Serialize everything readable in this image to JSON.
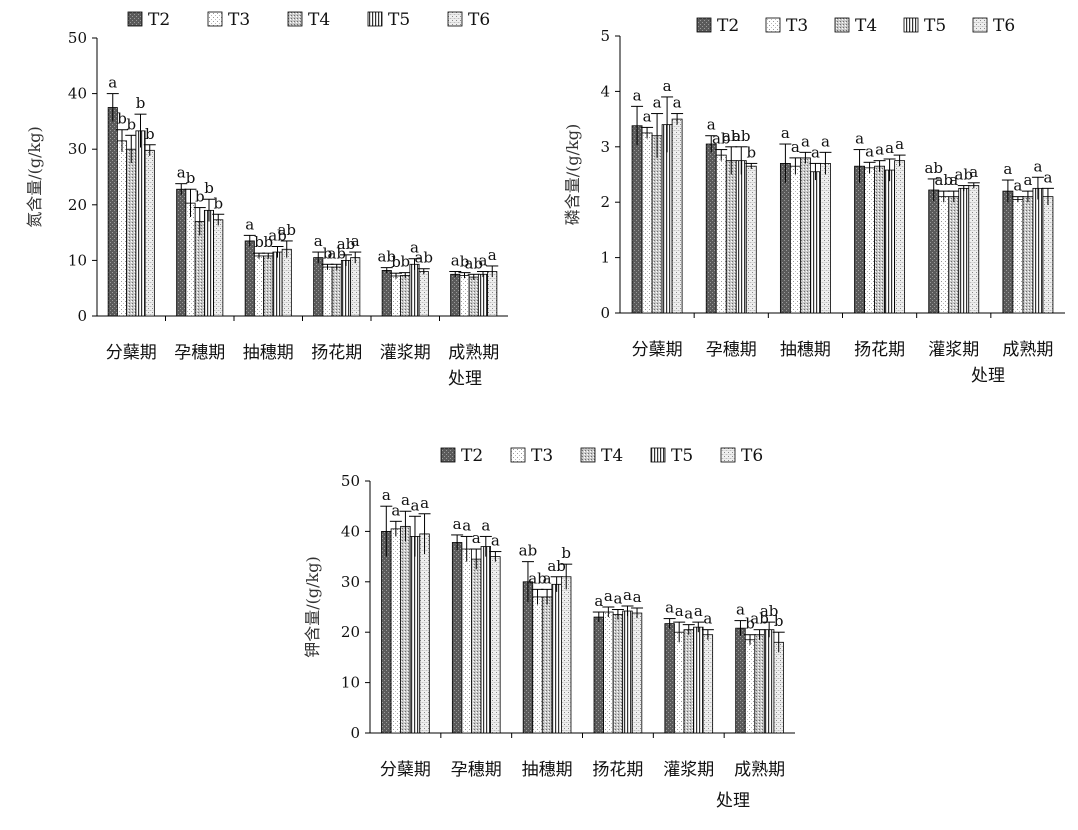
{
  "chart_data": [
    {
      "type": "bar",
      "ylabel": "氮含量/(g/kg)",
      "xlabel": "处理",
      "ylim": [
        0,
        50
      ],
      "yticks": [
        0,
        10,
        20,
        30,
        40,
        50
      ],
      "legend_position": "top",
      "categories": [
        "分蘖期",
        "孕穗期",
        "抽穗期",
        "扬花期",
        "灌浆期",
        "成熟期"
      ],
      "series": [
        {
          "name": "T2",
          "values": [
            37.5,
            22.8,
            13.5,
            10.5,
            8.2,
            7.5
          ],
          "errors": [
            2.5,
            1.0,
            1.0,
            1.0,
            0.5,
            0.5
          ],
          "labels": [
            "a",
            "a",
            "a",
            "a",
            "ab",
            "a"
          ]
        },
        {
          "name": "T3",
          "values": [
            31.5,
            20.3,
            10.8,
            8.8,
            7.2,
            7.3
          ],
          "errors": [
            2.0,
            2.5,
            0.5,
            0.5,
            0.5,
            0.5
          ],
          "labels": [
            "b",
            "b",
            "b",
            "b",
            "b",
            "b"
          ]
        },
        {
          "name": "T4",
          "values": [
            30.0,
            17.0,
            10.8,
            8.8,
            7.3,
            7.0
          ],
          "errors": [
            2.5,
            2.5,
            0.5,
            0.5,
            0.5,
            0.5
          ],
          "labels": [
            "b",
            "b",
            "b",
            "ab",
            "b",
            "ab"
          ]
        },
        {
          "name": "T5",
          "values": [
            33.3,
            19.0,
            11.5,
            10.0,
            9.3,
            7.5
          ],
          "errors": [
            3.0,
            2.0,
            1.0,
            1.0,
            1.0,
            0.5
          ],
          "labels": [
            "b",
            "b",
            "ab",
            "ab",
            "a",
            "a"
          ]
        },
        {
          "name": "T6",
          "values": [
            29.8,
            17.3,
            12.0,
            10.5,
            8.0,
            8.0
          ],
          "errors": [
            1.0,
            1.0,
            1.5,
            1.0,
            0.5,
            1.0
          ],
          "labels": [
            "b",
            "b",
            "ab",
            "a",
            "ab",
            "a"
          ]
        }
      ]
    },
    {
      "type": "bar",
      "ylabel": "磷含量/(g/kg)",
      "xlabel": "处理",
      "ylim": [
        0,
        5
      ],
      "yticks": [
        0,
        1,
        2,
        3,
        4,
        5
      ],
      "legend_position": "top",
      "categories": [
        "分蘖期",
        "孕穗期",
        "抽穗期",
        "扬花期",
        "灌浆期",
        "成熟期"
      ],
      "series": [
        {
          "name": "T2",
          "values": [
            3.38,
            3.05,
            2.7,
            2.65,
            2.22,
            2.2
          ],
          "errors": [
            0.35,
            0.15,
            0.35,
            0.3,
            0.2,
            0.2
          ],
          "labels": [
            "a",
            "a",
            "a",
            "a",
            "ab",
            "a"
          ]
        },
        {
          "name": "T3",
          "values": [
            3.25,
            2.85,
            2.65,
            2.62,
            2.1,
            2.05
          ],
          "errors": [
            0.1,
            0.1,
            0.15,
            0.1,
            0.1,
            0.05
          ],
          "labels": [
            "a",
            "ab",
            "a",
            "a",
            "ab",
            "a"
          ]
        },
        {
          "name": "T4",
          "values": [
            3.2,
            2.75,
            2.8,
            2.65,
            2.1,
            2.1
          ],
          "errors": [
            0.4,
            0.25,
            0.1,
            0.1,
            0.1,
            0.1
          ],
          "labels": [
            "a",
            "ab",
            "a",
            "a",
            "a",
            "a"
          ]
        },
        {
          "name": "T5",
          "values": [
            3.4,
            2.75,
            2.55,
            2.58,
            2.25,
            2.25
          ],
          "errors": [
            0.5,
            0.25,
            0.15,
            0.2,
            0.05,
            0.2
          ],
          "labels": [
            "a",
            "ab",
            "a",
            "a",
            "ab",
            "a"
          ]
        },
        {
          "name": "T6",
          "values": [
            3.5,
            2.65,
            2.7,
            2.75,
            2.3,
            2.1
          ],
          "errors": [
            0.1,
            0.05,
            0.2,
            0.1,
            0.05,
            0.15
          ],
          "labels": [
            "a",
            "b",
            "a",
            "a",
            "a",
            "a"
          ]
        }
      ]
    },
    {
      "type": "bar",
      "ylabel": "钾含量/(g/kg)",
      "xlabel": "处理",
      "ylim": [
        0,
        50
      ],
      "yticks": [
        0,
        10,
        20,
        30,
        40,
        50
      ],
      "legend_position": "top",
      "categories": [
        "分蘖期",
        "孕穗期",
        "抽穗期",
        "扬花期",
        "灌浆期",
        "成熟期"
      ],
      "series": [
        {
          "name": "T2",
          "values": [
            40.0,
            37.8,
            30.0,
            23.0,
            21.7,
            20.8
          ],
          "errors": [
            5.0,
            1.5,
            4.0,
            1.0,
            1.0,
            1.5
          ],
          "labels": [
            "a",
            "a",
            "ab",
            "a",
            "a",
            "a"
          ]
        },
        {
          "name": "T3",
          "values": [
            40.5,
            36.5,
            27.0,
            24.0,
            20.0,
            18.5
          ],
          "errors": [
            1.5,
            2.5,
            1.5,
            1.0,
            2.0,
            1.0
          ],
          "labels": [
            "a",
            "a",
            "ab",
            "a",
            "a",
            "b"
          ]
        },
        {
          "name": "T4",
          "values": [
            41.0,
            34.5,
            27.0,
            23.5,
            20.5,
            19.5
          ],
          "errors": [
            3.0,
            2.0,
            1.5,
            1.0,
            1.0,
            1.0
          ],
          "labels": [
            "a",
            "a",
            "a",
            "a",
            "a",
            "ab"
          ]
        },
        {
          "name": "T5",
          "values": [
            39.0,
            37.0,
            29.5,
            24.2,
            21.0,
            20.5
          ],
          "errors": [
            4.0,
            2.0,
            1.5,
            1.0,
            1.0,
            1.5
          ],
          "labels": [
            "a",
            "a",
            "ab",
            "a",
            "a",
            "ab"
          ]
        },
        {
          "name": "T6",
          "values": [
            39.5,
            35.0,
            31.0,
            23.8,
            19.5,
            18.0
          ],
          "errors": [
            4.0,
            1.0,
            2.5,
            1.0,
            1.0,
            2.0
          ],
          "labels": [
            "a",
            "a",
            "b",
            "a",
            "a",
            "b"
          ]
        }
      ]
    }
  ]
}
